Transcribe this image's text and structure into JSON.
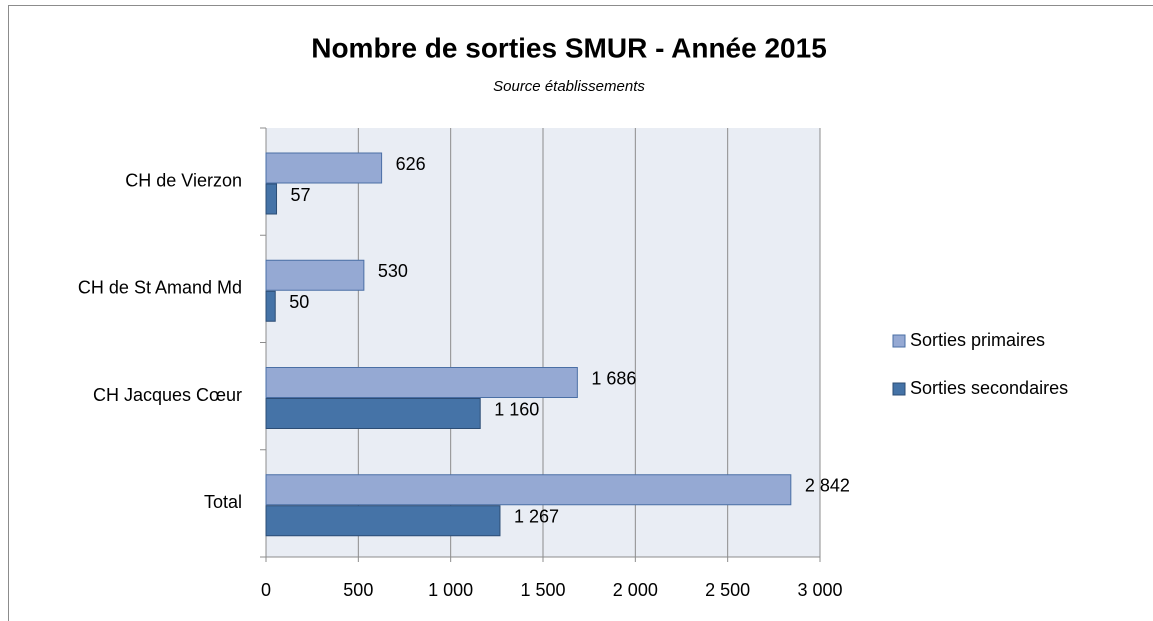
{
  "chart_data": {
    "type": "hbar",
    "title": "Nombre de sorties SMUR - Année 2015",
    "subtitle": "Source établissements",
    "categories": [
      "CH de Vierzon",
      "CH de St Amand Md",
      "CH Jacques Cœur",
      "Total"
    ],
    "series": [
      {
        "name": "Sorties primaires",
        "color": "#95a9d3",
        "values": [
          626,
          530,
          1686,
          2842
        ],
        "value_labels": [
          "626",
          "530",
          "1 686",
          "2 842"
        ]
      },
      {
        "name": "Sorties secondaires",
        "color": "#4573a7",
        "values": [
          57,
          50,
          1160,
          1267
        ],
        "value_labels": [
          "57",
          "50",
          "1 160",
          "1 267"
        ]
      }
    ],
    "xlim": [
      0,
      3000
    ],
    "xticks": [
      0,
      500,
      {
        "value": 1000,
        "label": "1 000"
      },
      {
        "value": 1500,
        "label": "1 500"
      },
      {
        "value": 2000,
        "label": "2 000"
      },
      {
        "value": 2500,
        "label": "2 500"
      },
      {
        "value": 3000,
        "label": "3 000"
      }
    ],
    "grid": true,
    "legend": "right"
  }
}
